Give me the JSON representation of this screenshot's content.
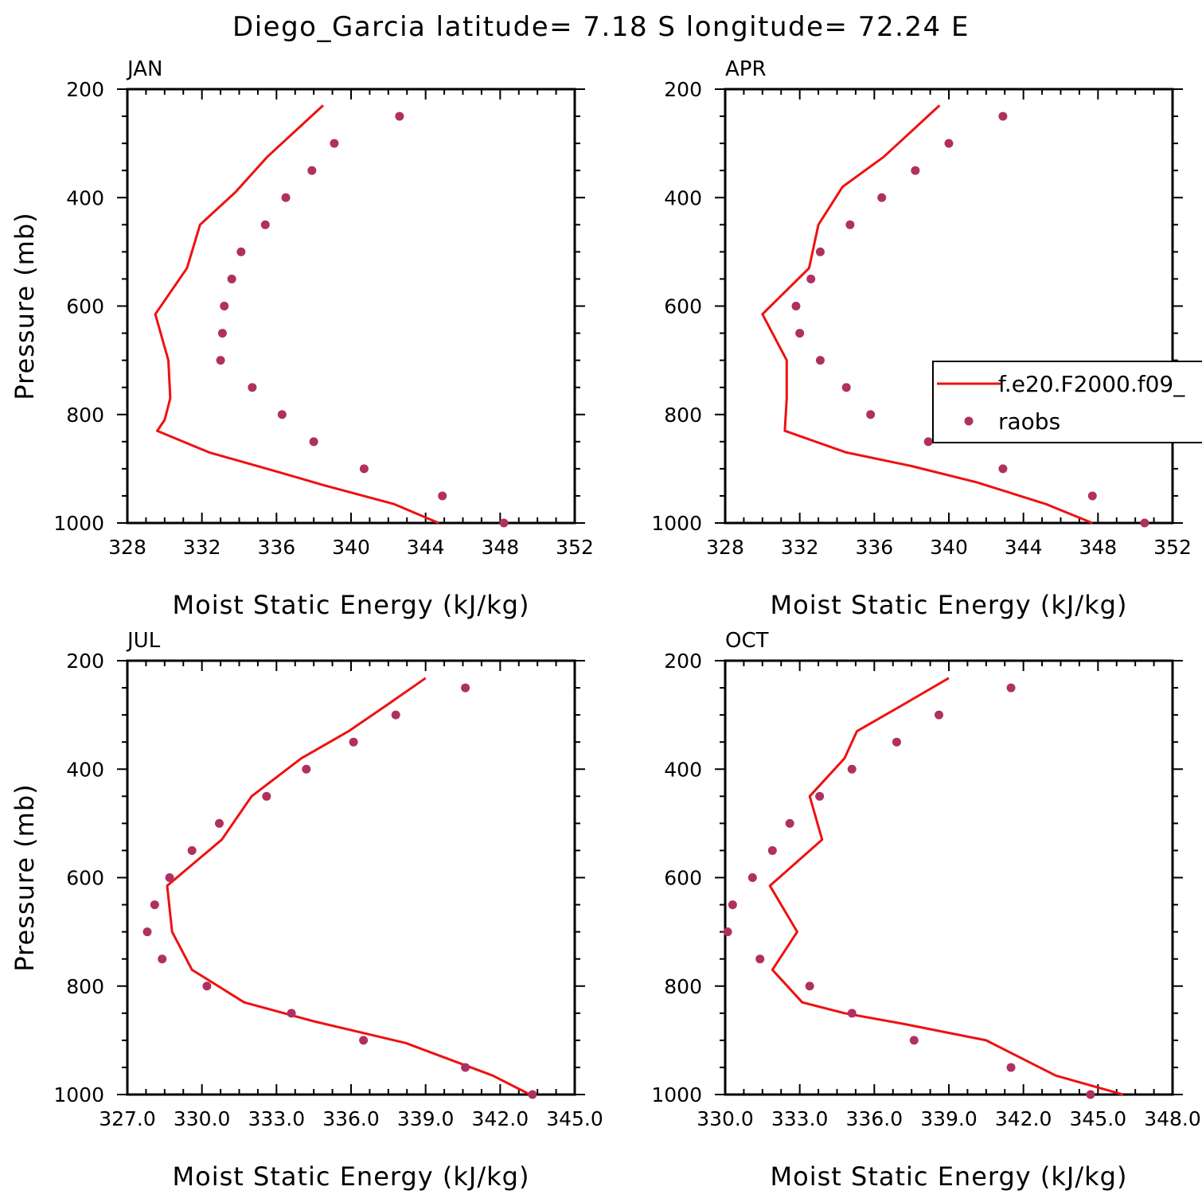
{
  "figure_title": "Diego_Garcia  latitude= 7.18 S longitude= 72.24 E",
  "legend": {
    "items": [
      {
        "label": "f.e20.F2000.f09_",
        "marker": "line",
        "color": "#ee1111"
      },
      {
        "label": "raobs",
        "marker": "dot",
        "color": "#b03060"
      }
    ]
  },
  "colors": {
    "model": "#ee1111",
    "obs": "#b03060",
    "axes": "#000000"
  },
  "chart_data": [
    {
      "type": "line",
      "title": "JAN",
      "xlabel": "Moist Static Energy (kJ/kg)",
      "ylabel": "Pressure (mb)",
      "xlim": [
        328,
        352
      ],
      "ylim": [
        1000,
        200
      ],
      "xticks": [
        "328",
        "332",
        "336",
        "340",
        "344",
        "348",
        "352"
      ],
      "yticks": [
        "200",
        "400",
        "600",
        "800",
        "1000"
      ],
      "series": [
        {
          "name": "f.e20.F2000.f09_",
          "style": "line",
          "x": [
            338.5,
            335.5,
            333.8,
            331.9,
            331.2,
            329.5,
            330.2,
            330.3,
            330.0,
            329.6,
            332.4,
            335.5,
            338.5,
            342.3,
            344.7
          ],
          "y": [
            230,
            325,
            390,
            450,
            530,
            615,
            700,
            770,
            810,
            830,
            870,
            900,
            930,
            965,
            1000
          ]
        },
        {
          "name": "raobs",
          "style": "scatter",
          "x": [
            342.6,
            339.1,
            337.9,
            336.5,
            335.4,
            334.1,
            333.6,
            333.2,
            333.1,
            333.0,
            334.7,
            336.3,
            338.0,
            340.7,
            344.9,
            348.2
          ],
          "y": [
            250,
            300,
            350,
            400,
            450,
            500,
            550,
            600,
            650,
            700,
            750,
            800,
            850,
            900,
            950,
            1000
          ]
        }
      ]
    },
    {
      "type": "line",
      "title": "APR",
      "xlabel": "Moist Static Energy (kJ/kg)",
      "ylabel": "",
      "xlim": [
        328,
        352
      ],
      "ylim": [
        1000,
        200
      ],
      "xticks": [
        "328",
        "332",
        "336",
        "340",
        "344",
        "348",
        "352"
      ],
      "yticks": [
        "200",
        "400",
        "600",
        "800",
        "1000"
      ],
      "series": [
        {
          "name": "f.e20.F2000.f09_",
          "style": "line",
          "x": [
            339.5,
            336.5,
            334.3,
            333.0,
            332.5,
            330.0,
            331.3,
            331.3,
            331.2,
            334.5,
            338.0,
            341.5,
            345.2,
            347.7
          ],
          "y": [
            230,
            325,
            380,
            450,
            530,
            615,
            700,
            770,
            830,
            870,
            895,
            925,
            965,
            1000
          ]
        },
        {
          "name": "raobs",
          "style": "scatter",
          "x": [
            342.9,
            340.0,
            338.2,
            336.4,
            334.7,
            333.1,
            332.6,
            331.8,
            332.0,
            333.1,
            334.5,
            335.8,
            338.9,
            342.9,
            347.7,
            350.5
          ],
          "y": [
            250,
            300,
            350,
            400,
            450,
            500,
            550,
            600,
            650,
            700,
            750,
            800,
            850,
            900,
            950,
            1000
          ]
        }
      ]
    },
    {
      "type": "line",
      "title": "JUL",
      "xlabel": "Moist Static Energy (kJ/kg)",
      "ylabel": "Pressure (mb)",
      "xlim": [
        327,
        345
      ],
      "ylim": [
        1000,
        200
      ],
      "xticks": [
        "327.0",
        "330.0",
        "333.0",
        "336.0",
        "339.0",
        "342.0",
        "345.0"
      ],
      "yticks": [
        "200",
        "400",
        "600",
        "800",
        "1000"
      ],
      "series": [
        {
          "name": "f.e20.F2000.f09_",
          "style": "line",
          "x": [
            339.0,
            337.5,
            335.9,
            334.0,
            332.0,
            330.8,
            328.6,
            328.8,
            329.6,
            331.7,
            334.5,
            338.2,
            341.7,
            343.2
          ],
          "y": [
            232,
            280,
            330,
            380,
            450,
            530,
            615,
            700,
            770,
            830,
            865,
            905,
            965,
            1000
          ]
        },
        {
          "name": "raobs",
          "style": "scatter",
          "x": [
            340.6,
            337.8,
            336.1,
            334.2,
            332.6,
            330.7,
            329.6,
            328.7,
            328.1,
            327.8,
            328.4,
            330.2,
            333.6,
            336.5,
            340.6,
            343.3
          ],
          "y": [
            250,
            300,
            350,
            400,
            450,
            500,
            550,
            600,
            650,
            700,
            750,
            800,
            850,
            900,
            950,
            1000
          ]
        }
      ]
    },
    {
      "type": "line",
      "title": "OCT",
      "xlabel": "Moist Static Energy (kJ/kg)",
      "ylabel": "",
      "xlim": [
        330,
        348
      ],
      "ylim": [
        1000,
        200
      ],
      "xticks": [
        "330.0",
        "333.0",
        "336.0",
        "339.0",
        "342.0",
        "345.0",
        "348.0"
      ],
      "yticks": [
        "200",
        "400",
        "600",
        "800",
        "1000"
      ],
      "series": [
        {
          "name": "f.e20.F2000.f09_",
          "style": "line",
          "x": [
            339.0,
            337.2,
            335.3,
            334.8,
            333.4,
            333.9,
            331.8,
            332.9,
            331.9,
            333.1,
            334.8,
            337.2,
            340.5,
            343.3,
            346.0
          ],
          "y": [
            232,
            280,
            330,
            380,
            450,
            530,
            615,
            700,
            770,
            830,
            850,
            870,
            900,
            965,
            1000
          ]
        },
        {
          "name": "raobs",
          "style": "scatter",
          "x": [
            341.5,
            338.6,
            336.9,
            335.1,
            333.8,
            332.6,
            331.9,
            331.1,
            330.3,
            330.1,
            331.4,
            333.4,
            335.1,
            337.6,
            341.5,
            344.7
          ],
          "y": [
            250,
            300,
            350,
            400,
            450,
            500,
            550,
            600,
            650,
            700,
            750,
            800,
            850,
            900,
            950,
            1000
          ]
        }
      ]
    }
  ]
}
